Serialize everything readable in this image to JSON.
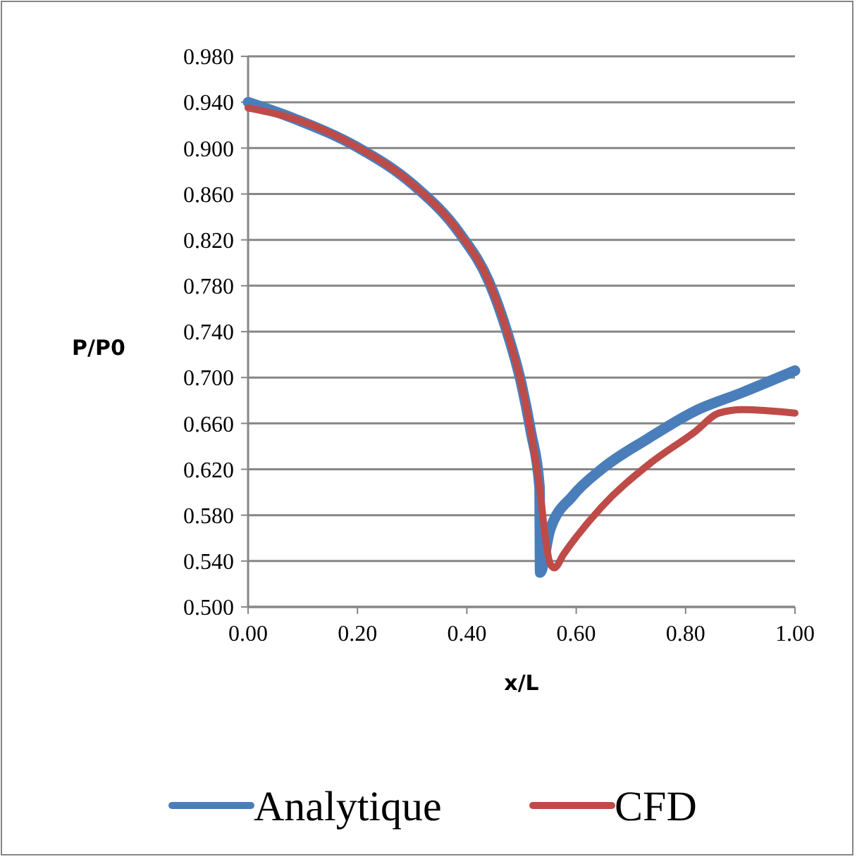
{
  "chart_data": {
    "type": "line",
    "xlabel": "x/L",
    "ylabel": "P/P0",
    "xlim": [
      0,
      1
    ],
    "xticks": [
      {
        "value": 0,
        "label": "0.00"
      },
      {
        "value": 0.2,
        "label": "0.20"
      },
      {
        "value": 0.4,
        "label": "0.40"
      },
      {
        "value": 0.6,
        "label": "0.60"
      },
      {
        "value": 0.8,
        "label": "0.80"
      },
      {
        "value": 1,
        "label": "1.00"
      }
    ],
    "ylim": [
      0.5,
      0.98
    ],
    "yticks": [
      {
        "value": 0.5,
        "label": "0.500"
      },
      {
        "value": 0.54,
        "label": "0.540"
      },
      {
        "value": 0.58,
        "label": "0.580"
      },
      {
        "value": 0.62,
        "label": "0.620"
      },
      {
        "value": 0.66,
        "label": "0.660"
      },
      {
        "value": 0.7,
        "label": "0.700"
      },
      {
        "value": 0.74,
        "label": "0.740"
      },
      {
        "value": 0.78,
        "label": "0.780"
      },
      {
        "value": 0.82,
        "label": "0.820"
      },
      {
        "value": 0.86,
        "label": "0.860"
      },
      {
        "value": 0.9,
        "label": "0.900"
      },
      {
        "value": 0.94,
        "label": "0.940"
      },
      {
        "value": 0.98,
        "label": "0.980"
      }
    ],
    "grid": "y",
    "legend": "bottom",
    "marker": "none",
    "line_style": "solid",
    "series": [
      {
        "name": "Analytique",
        "color": "#4a7ebb",
        "x": [
          0,
          0.088,
          0.199,
          0.302,
          0.388,
          0.44,
          0.474,
          0.5,
          0.517,
          0.533,
          0.534,
          0.552,
          0.594,
          0.646,
          0.732,
          0.818,
          0.904,
          1.0
        ],
        "values": [
          0.94,
          0.925,
          0.901,
          0.868,
          0.825,
          0.784,
          0.739,
          0.694,
          0.653,
          0.604,
          0.53,
          0.567,
          0.597,
          0.62,
          0.647,
          0.671,
          0.687,
          0.706
        ]
      },
      {
        "name": "CFD",
        "color": "#be4b48",
        "x": [
          0,
          0.088,
          0.199,
          0.302,
          0.388,
          0.44,
          0.474,
          0.5,
          0.517,
          0.533,
          0.543,
          0.552,
          0.56,
          0.577,
          0.646,
          0.732,
          0.818,
          0.861,
          0.904,
          1.0
        ],
        "values": [
          0.935,
          0.925,
          0.901,
          0.868,
          0.825,
          0.784,
          0.739,
          0.694,
          0.653,
          0.604,
          0.563,
          0.538,
          0.534,
          0.546,
          0.587,
          0.624,
          0.653,
          0.669,
          0.672,
          0.669
        ]
      }
    ]
  }
}
